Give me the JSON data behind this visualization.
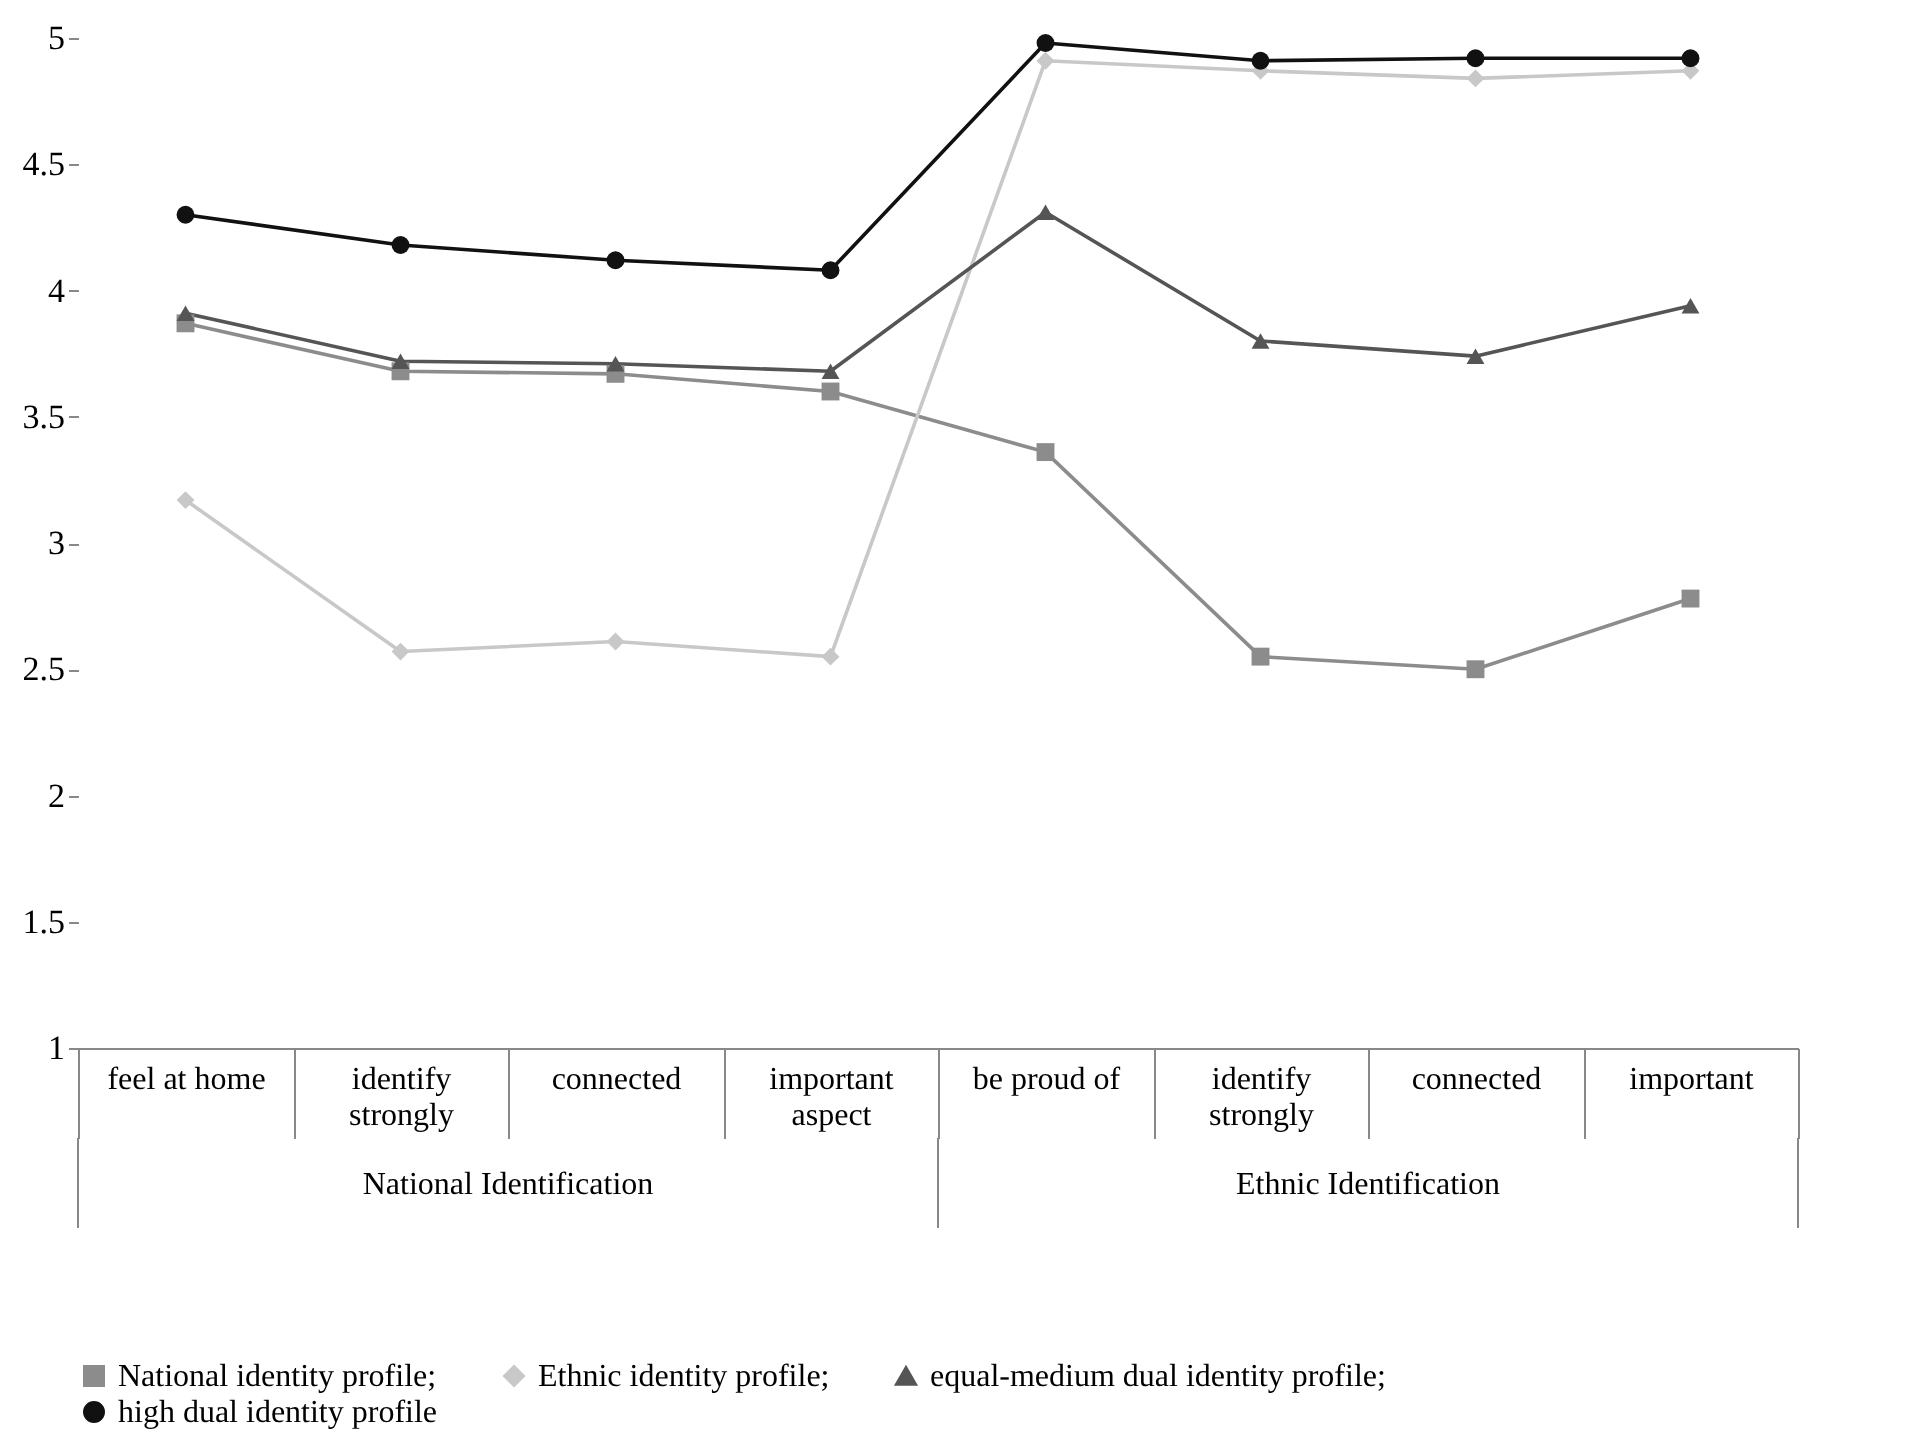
{
  "chart_data": {
    "type": "line",
    "categories": [
      "feel at home",
      "identify strongly",
      "connected",
      "important aspect",
      "be proud of",
      "identify strongly",
      "connected",
      "important"
    ],
    "annotations": [
      "National Identification",
      "Ethnic Identification"
    ],
    "series": [
      {
        "name": "National identity profile;",
        "color": "#8c8c8c",
        "marker": "square",
        "values": [
          3.87,
          3.68,
          3.67,
          3.6,
          3.36,
          2.55,
          2.5,
          2.78
        ]
      },
      {
        "name": "Ethnic identity profile;",
        "color": "#c8c8c8",
        "marker": "diamond",
        "values": [
          3.17,
          2.57,
          2.61,
          2.55,
          4.91,
          4.87,
          4.84,
          4.87
        ]
      },
      {
        "name": "equal-medium dual identity profile;",
        "color": "#555555",
        "marker": "triangle",
        "values": [
          3.91,
          3.72,
          3.71,
          3.68,
          4.31,
          3.8,
          3.74,
          3.94
        ]
      },
      {
        "name": "high dual identity profile",
        "color": "#111111",
        "marker": "circle",
        "values": [
          4.3,
          4.18,
          4.12,
          4.08,
          4.98,
          4.91,
          4.92,
          4.92
        ]
      }
    ],
    "ylim": [
      1,
      5
    ],
    "yticks": [
      1,
      1.5,
      2,
      2.5,
      3,
      3.5,
      4,
      4.5,
      5
    ],
    "grid": false,
    "legend": "bottom",
    "line_style": "solid"
  }
}
